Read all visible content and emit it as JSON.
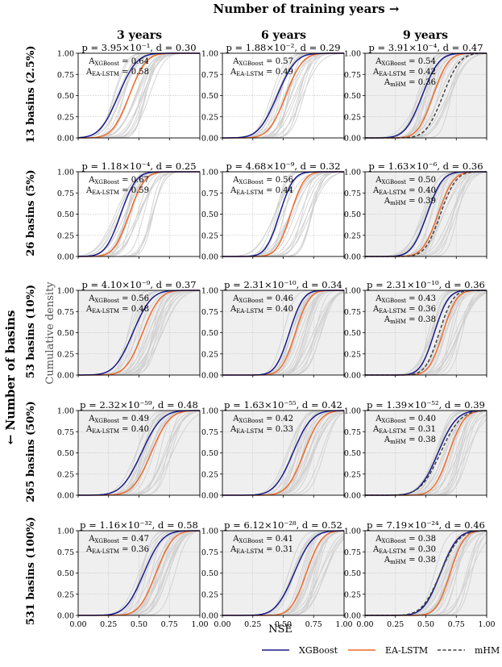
{
  "figure": {
    "top_title": "Number of training years →",
    "left_title": "← Number of basins",
    "xlabel": "NSE",
    "ylabel": "Cumulative density",
    "col_headers": [
      "3 years",
      "6 years",
      "9 years"
    ],
    "row_headers": [
      "13 basins (2.5%)",
      "26 basins (5%)",
      "53 basins (10%)",
      "265 basins (50%)",
      "531 basins (100%)"
    ]
  },
  "chart_data": {
    "type": "line",
    "subtype": "cumulative distribution grid (5 rows x 3 cols)",
    "x_ticks": [
      "0.00",
      "0.25",
      "0.50",
      "0.75",
      "1.00"
    ],
    "y_ticks": [
      "0.00",
      "0.25",
      "0.50",
      "0.75",
      "1.00"
    ],
    "xlim": [
      0,
      1
    ],
    "ylim": [
      0,
      1
    ],
    "legend": [
      {
        "name": "XGBoost",
        "color": "#1a1a8c",
        "dash": "solid"
      },
      {
        "name": "EA-LSTM",
        "color": "#ee6a2a",
        "dash": "solid"
      },
      {
        "name": "mHM",
        "color": "#444444",
        "dash": "dashed"
      }
    ],
    "legend_position": "bottom",
    "panels": [
      {
        "row": 0,
        "col": 0,
        "p": "p = 3.95×10⁻¹",
        "d": "d = 0.30",
        "shaded": false,
        "a_xgb": "A_XGBoost = 0.64",
        "a_ea": "A_EA-LSTM = 0.58",
        "a_mhm": "",
        "xgb": [
          0.33,
          0.12
        ],
        "ea": [
          0.42,
          0.11
        ],
        "mhm": null
      },
      {
        "row": 0,
        "col": 1,
        "p": "p = 1.88×10⁻²",
        "d": "d = 0.29",
        "shaded": false,
        "a_xgb": "A_XGBoost = 0.57",
        "a_ea": "A_EA-LSTM = 0.49",
        "a_mhm": "",
        "xgb": [
          0.45,
          0.12
        ],
        "ea": [
          0.52,
          0.11
        ],
        "mhm": null
      },
      {
        "row": 0,
        "col": 2,
        "p": "p = 3.91×10⁻⁴",
        "d": "d = 0.47",
        "shaded": true,
        "a_xgb": "A_XGBoost = 0.54",
        "a_ea": "A_EA-LSTM = 0.42",
        "a_mhm": "A_mHM = 0.36",
        "xgb": [
          0.47,
          0.11
        ],
        "ea": [
          0.56,
          0.1
        ],
        "mhm": [
          0.64,
          0.11
        ]
      },
      {
        "row": 1,
        "col": 0,
        "p": "p = 1.18×10⁻⁴",
        "d": "d = 0.25",
        "shaded": false,
        "a_xgb": "A_XGBoost = 0.67",
        "a_ea": "A_EA-LSTM = 0.59",
        "a_mhm": "",
        "xgb": [
          0.35,
          0.1
        ],
        "ea": [
          0.42,
          0.1
        ],
        "mhm": null
      },
      {
        "row": 1,
        "col": 1,
        "p": "p = 4.68×10⁻⁹",
        "d": "d = 0.32",
        "shaded": false,
        "a_xgb": "A_XGBoost = 0.56",
        "a_ea": "A_EA-LSTM = 0.44",
        "a_mhm": "",
        "xgb": [
          0.47,
          0.09
        ],
        "ea": [
          0.56,
          0.09
        ],
        "mhm": null
      },
      {
        "row": 1,
        "col": 2,
        "p": "p = 1.63×10⁻⁶",
        "d": "d = 0.36",
        "shaded": true,
        "a_xgb": "A_XGBoost = 0.50",
        "a_ea": "A_EA-LSTM = 0.40",
        "a_mhm": "A_mHM = 0.39",
        "xgb": [
          0.51,
          0.1
        ],
        "ea": [
          0.6,
          0.1
        ],
        "mhm": [
          0.62,
          0.1
        ]
      },
      {
        "row": 2,
        "col": 0,
        "p": "p = 4.10×10⁻⁹",
        "d": "d = 0.37",
        "shaded": true,
        "a_xgb": "A_XGBoost = 0.56",
        "a_ea": "A_EA-LSTM = 0.48",
        "a_mhm": "",
        "xgb": [
          0.45,
          0.12
        ],
        "ea": [
          0.53,
          0.11
        ],
        "mhm": null
      },
      {
        "row": 2,
        "col": 1,
        "p": "p = 2.31×10⁻¹⁰",
        "d": "d = 0.34",
        "shaded": true,
        "a_xgb": "A_XGBoost = 0.46",
        "a_ea": "A_EA-LSTM = 0.40",
        "a_mhm": "",
        "xgb": [
          0.55,
          0.09
        ],
        "ea": [
          0.6,
          0.09
        ],
        "mhm": null
      },
      {
        "row": 2,
        "col": 2,
        "p": "p = 2.31×10⁻¹⁰",
        "d": "d = 0.36",
        "shaded": true,
        "a_xgb": "A_XGBoost = 0.43",
        "a_ea": "A_EA-LSTM = 0.36",
        "a_mhm": "A_mHM = 0.38",
        "xgb": [
          0.57,
          0.09
        ],
        "ea": [
          0.64,
          0.09
        ],
        "mhm": [
          0.61,
          0.09
        ]
      },
      {
        "row": 3,
        "col": 0,
        "p": "p = 2.32×10⁻⁵⁹",
        "d": "d = 0.48",
        "shaded": true,
        "a_xgb": "A_XGBoost = 0.49",
        "a_ea": "A_EA-LSTM = 0.40",
        "a_mhm": "",
        "xgb": [
          0.52,
          0.13
        ],
        "ea": [
          0.6,
          0.12
        ],
        "mhm": null
      },
      {
        "row": 3,
        "col": 1,
        "p": "p = 1.63×10⁻⁵⁵",
        "d": "d = 0.42",
        "shaded": true,
        "a_xgb": "A_XGBoost = 0.42",
        "a_ea": "A_EA-LSTM = 0.33",
        "a_mhm": "",
        "xgb": [
          0.58,
          0.12
        ],
        "ea": [
          0.67,
          0.11
        ],
        "mhm": null
      },
      {
        "row": 3,
        "col": 2,
        "p": "p = 1.39×10⁻⁵²",
        "d": "d = 0.39",
        "shaded": true,
        "a_xgb": "A_XGBoost = 0.40",
        "a_ea": "A_EA-LSTM = 0.31",
        "a_mhm": "A_mHM = 0.38",
        "xgb": [
          0.6,
          0.12
        ],
        "ea": [
          0.69,
          0.1
        ],
        "mhm": [
          0.62,
          0.13
        ]
      },
      {
        "row": 4,
        "col": 0,
        "p": "p = 1.16×10⁻³²",
        "d": "d = 0.58",
        "shaded": true,
        "a_xgb": "A_XGBoost = 0.47",
        "a_ea": "A_EA-LSTM = 0.36",
        "a_mhm": "",
        "xgb": [
          0.54,
          0.12
        ],
        "ea": [
          0.64,
          0.11
        ],
        "mhm": null
      },
      {
        "row": 4,
        "col": 1,
        "p": "p = 6.12×10⁻²⁸",
        "d": "d = 0.52",
        "shaded": true,
        "a_xgb": "A_XGBoost = 0.41",
        "a_ea": "A_EA-LSTM = 0.31",
        "a_mhm": "",
        "xgb": [
          0.59,
          0.12
        ],
        "ea": [
          0.69,
          0.1
        ],
        "mhm": null
      },
      {
        "row": 4,
        "col": 2,
        "p": "p = 7.19×10⁻²⁴",
        "d": "d = 0.46",
        "shaded": true,
        "a_xgb": "A_XGBoost = 0.38",
        "a_ea": "A_EA-LSTM = 0.30",
        "a_mhm": "A_mHM = 0.38",
        "xgb": [
          0.62,
          0.11
        ],
        "ea": [
          0.7,
          0.09
        ],
        "mhm": [
          0.62,
          0.12
        ]
      }
    ]
  },
  "colors": {
    "xgboost": "#1a1a8c",
    "ea_lstm": "#ee6a2a",
    "mhm": "#444444",
    "background_curves": "#d0d0d0",
    "shade": "#efefef"
  }
}
